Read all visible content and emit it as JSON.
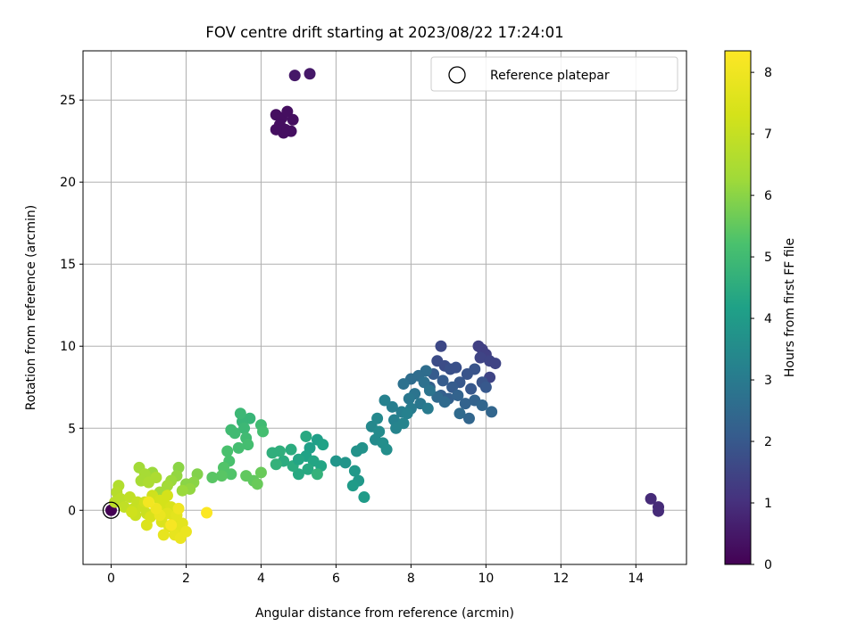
{
  "chart_data": {
    "type": "scatter",
    "title": "FOV centre drift starting at 2023/08/22 17:24:01",
    "xlabel": "Angular distance from reference (arcmin)",
    "ylabel": "Rotation from reference (arcmin)",
    "xlim": [
      -0.75,
      15.35
    ],
    "ylim": [
      -3.3,
      28.0
    ],
    "xticks": [
      "0",
      "2",
      "4",
      "6",
      "8",
      "10",
      "12",
      "14"
    ],
    "yticks": [
      "0",
      "5",
      "10",
      "15",
      "20",
      "25"
    ],
    "grid": true,
    "legend": {
      "placement": "top-right",
      "entries": [
        "Reference platepar"
      ]
    },
    "reference_point": {
      "x": 0,
      "y": 0
    },
    "colorbar": {
      "label": "Hours from first FF file",
      "colormap": "viridis",
      "range": [
        0,
        8.35
      ],
      "ticks": [
        "0",
        "1",
        "2",
        "3",
        "4",
        "5",
        "6",
        "7",
        "8"
      ]
    },
    "points": [
      [
        0,
        0,
        0
      ],
      [
        4.9,
        26.5,
        0.5
      ],
      [
        5.3,
        26.6,
        0.5
      ],
      [
        4.4,
        24.1,
        0.3
      ],
      [
        4.55,
        23.9,
        0.3
      ],
      [
        4.7,
        24.3,
        0.3
      ],
      [
        4.85,
        23.8,
        0.3
      ],
      [
        4.5,
        23.5,
        0.3
      ],
      [
        4.65,
        23.2,
        0.3
      ],
      [
        4.8,
        23.1,
        0.3
      ],
      [
        4.6,
        23.0,
        0.3
      ],
      [
        4.4,
        23.2,
        0.3
      ],
      [
        14.4,
        0.7,
        0.9
      ],
      [
        14.6,
        0.2,
        0.9
      ],
      [
        14.6,
        -0.05,
        0.9
      ],
      [
        9.8,
        10.0,
        1.4
      ],
      [
        9.9,
        9.8,
        1.4
      ],
      [
        10.0,
        9.5,
        1.4
      ],
      [
        9.85,
        9.3,
        1.5
      ],
      [
        10.1,
        9.1,
        1.5
      ],
      [
        10.25,
        8.95,
        1.5
      ],
      [
        10.1,
        8.1,
        1.5
      ],
      [
        8.8,
        10.0,
        1.6
      ],
      [
        8.7,
        9.1,
        1.7
      ],
      [
        8.9,
        8.8,
        1.7
      ],
      [
        9.05,
        8.6,
        1.8
      ],
      [
        9.2,
        8.7,
        1.8
      ],
      [
        9.5,
        8.3,
        1.9
      ],
      [
        9.7,
        8.6,
        1.9
      ],
      [
        9.9,
        7.8,
        1.9
      ],
      [
        10.0,
        7.5,
        2.0
      ],
      [
        9.6,
        7.4,
        2.0
      ],
      [
        9.3,
        7.8,
        2.0
      ],
      [
        9.1,
        7.5,
        2.1
      ],
      [
        8.85,
        7.9,
        2.1
      ],
      [
        8.6,
        8.3,
        2.1
      ],
      [
        8.5,
        7.5,
        2.2
      ],
      [
        8.8,
        7.0,
        2.2
      ],
      [
        9.0,
        6.8,
        2.2
      ],
      [
        9.25,
        7.0,
        2.3
      ],
      [
        9.45,
        6.5,
        2.3
      ],
      [
        9.7,
        6.7,
        2.3
      ],
      [
        9.9,
        6.4,
        2.4
      ],
      [
        10.15,
        6.0,
        2.4
      ],
      [
        9.55,
        5.6,
        2.4
      ],
      [
        9.3,
        5.9,
        2.5
      ],
      [
        8.9,
        6.6,
        2.5
      ],
      [
        8.7,
        6.9,
        2.5
      ],
      [
        8.4,
        8.5,
        2.6
      ],
      [
        8.2,
        8.2,
        2.6
      ],
      [
        8.0,
        8.0,
        2.6
      ],
      [
        7.8,
        7.7,
        2.7
      ],
      [
        8.35,
        7.8,
        2.7
      ],
      [
        8.5,
        7.3,
        2.8
      ],
      [
        8.1,
        7.1,
        2.8
      ],
      [
        7.95,
        6.8,
        2.9
      ],
      [
        8.25,
        6.5,
        2.9
      ],
      [
        8.45,
        6.2,
        3.0
      ],
      [
        8.0,
        6.2,
        3.0
      ],
      [
        7.75,
        6.0,
        3.1
      ],
      [
        7.5,
        6.3,
        3.1
      ],
      [
        7.3,
        6.7,
        3.2
      ],
      [
        7.55,
        5.5,
        3.2
      ],
      [
        7.8,
        5.3,
        3.3
      ],
      [
        7.6,
        5.0,
        3.3
      ],
      [
        7.9,
        5.9,
        3.2
      ],
      [
        7.1,
        5.6,
        3.4
      ],
      [
        6.95,
        5.1,
        3.4
      ],
      [
        7.15,
        4.8,
        3.5
      ],
      [
        7.05,
        4.3,
        3.5
      ],
      [
        7.25,
        4.1,
        3.6
      ],
      [
        7.35,
        3.7,
        3.6
      ],
      [
        6.7,
        3.8,
        3.7
      ],
      [
        6.55,
        3.6,
        3.7
      ],
      [
        6.25,
        2.9,
        3.8
      ],
      [
        6.0,
        3.0,
        3.8
      ],
      [
        6.5,
        2.4,
        3.9
      ],
      [
        6.6,
        1.8,
        3.9
      ],
      [
        6.45,
        1.5,
        4.0
      ],
      [
        6.75,
        0.8,
        4.0
      ],
      [
        5.5,
        4.3,
        4.1
      ],
      [
        5.3,
        3.8,
        4.1
      ],
      [
        5.65,
        4.0,
        4.2
      ],
      [
        5.2,
        3.3,
        4.2
      ],
      [
        5.4,
        3.0,
        4.3
      ],
      [
        5.6,
        2.7,
        4.3
      ],
      [
        5.25,
        2.5,
        4.4
      ],
      [
        5.0,
        2.2,
        4.4
      ],
      [
        4.85,
        2.7,
        4.5
      ],
      [
        4.6,
        3.0,
        4.5
      ],
      [
        4.8,
        3.7,
        4.5
      ],
      [
        4.5,
        3.6,
        4.6
      ],
      [
        4.3,
        3.5,
        4.6
      ],
      [
        4.4,
        2.8,
        4.7
      ],
      [
        5.5,
        2.2,
        4.7
      ],
      [
        5.2,
        4.5,
        4.4
      ],
      [
        5.0,
        3.1,
        4.3
      ],
      [
        3.7,
        5.6,
        4.8
      ],
      [
        3.5,
        5.4,
        4.8
      ],
      [
        3.45,
        5.9,
        4.9
      ],
      [
        3.55,
        5.0,
        4.9
      ],
      [
        3.3,
        4.7,
        5.0
      ],
      [
        3.6,
        4.4,
        5.0
      ],
      [
        3.65,
        4.0,
        5.1
      ],
      [
        3.4,
        3.8,
        5.1
      ],
      [
        3.1,
        3.6,
        5.2
      ],
      [
        3.15,
        3.0,
        5.2
      ],
      [
        3.0,
        2.6,
        5.3
      ],
      [
        3.2,
        2.2,
        5.3
      ],
      [
        2.95,
        2.1,
        5.4
      ],
      [
        2.7,
        2.0,
        5.4
      ],
      [
        3.6,
        2.1,
        5.5
      ],
      [
        3.8,
        1.8,
        5.5
      ],
      [
        3.9,
        1.6,
        5.6
      ],
      [
        4.0,
        2.3,
        5.6
      ],
      [
        4.0,
        5.2,
        5.0
      ],
      [
        4.05,
        4.8,
        5.1
      ],
      [
        3.2,
        4.9,
        5.0
      ],
      [
        2.3,
        2.2,
        5.9
      ],
      [
        2.2,
        1.7,
        6.0
      ],
      [
        2.0,
        1.6,
        6.0
      ],
      [
        2.1,
        1.3,
        6.1
      ],
      [
        1.8,
        2.6,
        6.0
      ],
      [
        1.75,
        2.1,
        6.1
      ],
      [
        1.6,
        1.8,
        6.2
      ],
      [
        1.9,
        1.2,
        6.2
      ],
      [
        1.5,
        1.5,
        6.3
      ],
      [
        1.3,
        1.1,
        6.3
      ],
      [
        1.1,
        2.3,
        6.2
      ],
      [
        0.75,
        2.6,
        6.3
      ],
      [
        0.9,
        2.2,
        6.4
      ],
      [
        0.8,
        1.8,
        6.4
      ],
      [
        1.0,
        1.7,
        6.5
      ],
      [
        1.2,
        2.0,
        6.5
      ],
      [
        0.2,
        1.5,
        6.6
      ],
      [
        0.15,
        1.1,
        6.7
      ],
      [
        0.25,
        0.7,
        6.8
      ],
      [
        0.1,
        0.5,
        6.8
      ],
      [
        0.35,
        0.2,
        6.9
      ],
      [
        0.5,
        0.8,
        6.9
      ],
      [
        0.7,
        0.5,
        7.0
      ],
      [
        0.6,
        0.1,
        7.0
      ],
      [
        0.85,
        0.2,
        7.1
      ],
      [
        0.95,
        -0.2,
        7.1
      ],
      [
        0.65,
        -0.3,
        7.1
      ],
      [
        0.55,
        -0.1,
        7.2
      ],
      [
        0.9,
        0.5,
        7.2
      ],
      [
        1.1,
        0.9,
        7.2
      ],
      [
        1.3,
        0.6,
        7.3
      ],
      [
        1.5,
        0.9,
        7.3
      ],
      [
        1.45,
        0.3,
        7.3
      ],
      [
        1.6,
        0.2,
        7.4
      ],
      [
        1.25,
        0.0,
        7.4
      ],
      [
        1.05,
        -0.4,
        7.4
      ],
      [
        0.95,
        -0.9,
        7.5
      ],
      [
        1.35,
        -0.7,
        7.5
      ],
      [
        1.5,
        -0.2,
        7.6
      ],
      [
        1.7,
        -0.5,
        7.6
      ],
      [
        1.55,
        -1.0,
        7.6
      ],
      [
        1.8,
        -1.2,
        7.7
      ],
      [
        1.75,
        -0.3,
        7.7
      ],
      [
        1.9,
        -0.8,
        7.7
      ],
      [
        1.4,
        -1.5,
        7.8
      ],
      [
        1.7,
        -1.5,
        7.8
      ],
      [
        1.85,
        -1.7,
        7.9
      ],
      [
        2.0,
        -1.3,
        7.9
      ],
      [
        1.3,
        -0.3,
        7.9
      ],
      [
        1.8,
        0.1,
        8.0
      ],
      [
        1.2,
        0.1,
        8.0
      ],
      [
        2.55,
        -0.15,
        8.3
      ],
      [
        1.0,
        0.5,
        8.1
      ],
      [
        1.6,
        -0.9,
        8.2
      ]
    ]
  }
}
